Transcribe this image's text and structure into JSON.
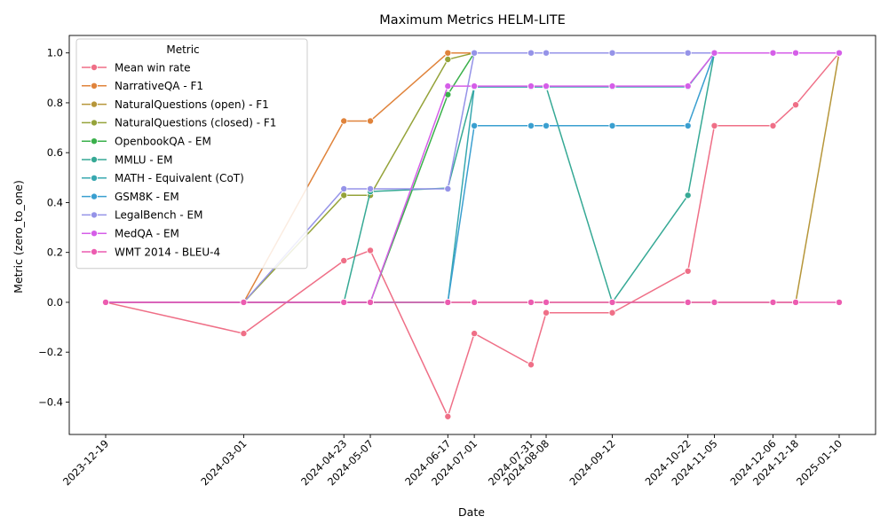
{
  "chart_data": {
    "type": "line",
    "title": "Maximum Metrics HELM-LITE",
    "xlabel": "Date",
    "ylabel": "Metric (zero_to_one)",
    "ylim": [
      -0.53,
      1.07
    ],
    "yticks": [
      -0.4,
      -0.2,
      0.0,
      0.2,
      0.4,
      0.6,
      0.8,
      1.0
    ],
    "ytick_labels": [
      "−0.4",
      "−0.2",
      "0.0",
      "0.2",
      "0.4",
      "0.6",
      "0.8",
      "1.0"
    ],
    "grid": false,
    "legend": {
      "title": "Metric",
      "placement": "top-left"
    },
    "x": [
      "2023-12-19",
      "2024-03-01",
      "2024-04-23",
      "2024-05-07",
      "2024-06-17",
      "2024-07-01",
      "2024-07-31",
      "2024-08-08",
      "2024-09-12",
      "2024-10-22",
      "2024-11-05",
      "2024-12-06",
      "2024-12-18",
      "2025-01-10"
    ],
    "series": [
      {
        "name": "Mean win rate",
        "color": "#ef6f87",
        "values": [
          0,
          -0.125,
          0.167,
          0.208,
          -0.458,
          -0.125,
          -0.25,
          -0.042,
          -0.042,
          0.125,
          0.708,
          0.708,
          0.792,
          1.0
        ]
      },
      {
        "name": "NarrativeQA - F1",
        "color": "#e0833b",
        "values": [
          0,
          0,
          0.727,
          0.727,
          1.0,
          1.0,
          1.0,
          1.0,
          1.0,
          1.0,
          1.0,
          1.0,
          1.0,
          1.0
        ]
      },
      {
        "name": "NaturalQuestions (open) - F1",
        "color": "#b6963a",
        "values": [
          0,
          0,
          0,
          0,
          0,
          0,
          0,
          0,
          0,
          0,
          0,
          0,
          0,
          1.0
        ]
      },
      {
        "name": "NaturalQuestions (closed) - F1",
        "color": "#95a33a",
        "values": [
          0,
          0,
          0.429,
          0.429,
          0.974,
          1.0,
          1.0,
          1.0,
          1.0,
          1.0,
          1.0,
          1.0,
          1.0,
          1.0
        ]
      },
      {
        "name": "OpenbookQA - EM",
        "color": "#3ab04b",
        "values": [
          0,
          0,
          0,
          0,
          0.833,
          1.0,
          1.0,
          1.0,
          1.0,
          1.0,
          1.0,
          1.0,
          1.0,
          1.0
        ]
      },
      {
        "name": "MMLU - EM",
        "color": "#36a995",
        "values": [
          0,
          0,
          0,
          0.444,
          0.458,
          0.864,
          0.864,
          0.864,
          0,
          0.429,
          1.0,
          1.0,
          1.0,
          1.0
        ]
      },
      {
        "name": "MATH - Equivalent (CoT)",
        "color": "#38a8b0",
        "values": [
          0,
          0,
          0,
          0,
          0,
          0.864,
          0.864,
          0.864,
          0.864,
          0.864,
          1.0,
          1.0,
          1.0,
          1.0
        ]
      },
      {
        "name": "GSM8K - EM",
        "color": "#3a9fd0",
        "values": [
          0,
          0,
          0,
          0,
          0,
          0.708,
          0.708,
          0.708,
          0.708,
          0.708,
          1.0,
          1.0,
          1.0,
          1.0
        ]
      },
      {
        "name": "LegalBench - EM",
        "color": "#9593e8",
        "values": [
          0,
          0,
          0.455,
          0.455,
          0.455,
          1.0,
          1.0,
          1.0,
          1.0,
          1.0,
          1.0,
          1.0,
          1.0,
          1.0
        ]
      },
      {
        "name": "MedQA - EM",
        "color": "#d55ee8",
        "values": [
          0,
          0,
          0,
          0,
          0.867,
          0.867,
          0.867,
          0.867,
          0.867,
          0.867,
          1.0,
          1.0,
          1.0,
          1.0
        ]
      },
      {
        "name": "WMT 2014 - BLEU-4",
        "color": "#ec5cb0",
        "values": [
          0,
          0,
          0,
          0,
          0,
          0,
          0,
          0,
          0,
          0,
          0,
          0,
          0,
          0
        ]
      }
    ]
  }
}
